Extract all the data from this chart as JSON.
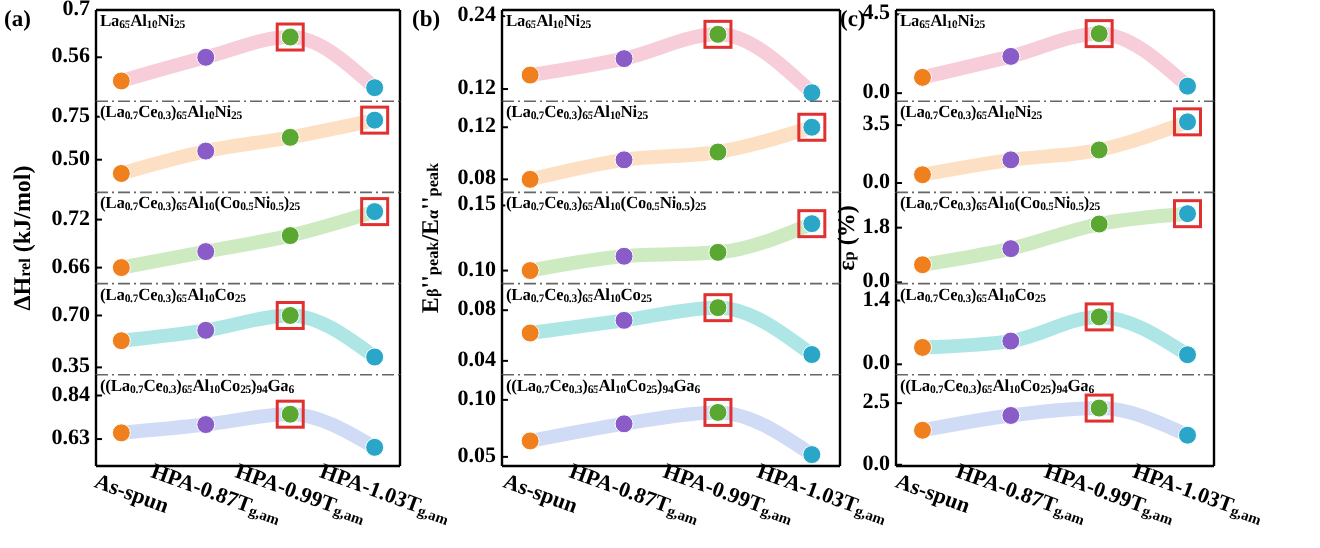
{
  "chart_data": [
    {
      "type": "line",
      "title": "(a)",
      "categories": [
        null,
        null,
        null,
        null
      ],
      "series": [
        {
          "color": "#f6cdd8",
          "values": [
            0.49,
            0.56,
            0.62,
            0.47
          ]
        }
      ],
      "colors": [
        "#f07f1e",
        "#8a5cc8",
        "#5aa832",
        "#2aa6c8"
      ],
      "marker": "circle",
      "ylim": [
        0.43,
        0.7
      ],
      "yticks": [
        0.56,
        0.7
      ],
      "annotations": [
        "La$_{65}$Al$_{10}$Ni$_{25}$"
      ]
    },
    {
      "type": "line",
      "title": "(b)",
      "categories": [
        null,
        null,
        null,
        null
      ],
      "series": [
        {
          "color": "#f6cdd8",
          "values": [
            0.143,
            0.17,
            0.21,
            0.114
          ]
        }
      ],
      "colors": [
        "#f07f1e",
        "#8a5cc8",
        "#5aa832",
        "#2aa6c8"
      ],
      "marker": "circle",
      "ylim": [
        0.1,
        0.25
      ],
      "yticks": [
        0.12,
        0.24
      ],
      "annotations": [
        "La$_{65}$Al$_{10}$Ni$_{25}$"
      ]
    },
    {
      "type": "line",
      "title": "(c)",
      "categories": [
        null,
        null,
        null,
        null
      ],
      "series": [
        {
          "color": "#f6cdd8",
          "values": [
            0.9,
            2.1,
            3.4,
            0.4
          ]
        }
      ],
      "colors": [
        "#f07f1e",
        "#8a5cc8",
        "#5aa832",
        "#2aa6c8"
      ],
      "marker": "circle",
      "ylim": [
        -0.46,
        4.75
      ],
      "yticks": [
        {
          "value": 0,
          "label": "0.0"
        },
        4.5
      ],
      "annotations": [
        "La$_{65}$Al$_{10}$Ni$_{25}$"
      ]
    },
    {
      "type": "line",
      "categories": [
        null,
        null,
        null,
        null
      ],
      "series": [
        {
          "color": "#fde0c4",
          "values": [
            0.42,
            0.55,
            0.63,
            0.73
          ]
        }
      ],
      "colors": [
        "#f07f1e",
        "#8a5cc8",
        "#5aa832",
        "#2aa6c8"
      ],
      "marker": "circle",
      "ylim": [
        0.31,
        0.84
      ],
      "yticks": [
        {
          "value": 0.5,
          "label": "0.50"
        },
        0.75
      ],
      "annotations": [
        "(La$_{0.7}$Ce$_{0.3}$)$_{65}$Al$_{10}$Ni$_{25}$"
      ]
    },
    {
      "type": "line",
      "categories": [
        null,
        null,
        null,
        null
      ],
      "series": [
        {
          "color": "#fde0c4",
          "values": [
            0.08,
            0.095,
            0.101,
            0.12
          ]
        }
      ],
      "colors": [
        "#f07f1e",
        "#8a5cc8",
        "#5aa832",
        "#2aa6c8"
      ],
      "marker": "circle",
      "ylim": [
        0.07,
        0.14
      ],
      "yticks": [
        0.08,
        0.12
      ],
      "annotations": [
        "(La$_{0.7}$Ce$_{0.3}$)$_{65}$Al$_{10}$Ni$_{25}$"
      ]
    },
    {
      "type": "line",
      "categories": [
        null,
        null,
        null,
        null
      ],
      "series": [
        {
          "color": "#fde0c4",
          "values": [
            0.5,
            1.4,
            2.0,
            3.7
          ]
        }
      ],
      "colors": [
        "#f07f1e",
        "#8a5cc8",
        "#5aa832",
        "#2aa6c8"
      ],
      "marker": "circle",
      "ylim": [
        -0.57,
        4.95
      ],
      "yticks": [
        {
          "value": 0,
          "label": "0.0"
        },
        3.5
      ],
      "annotations": [
        "(La$_{0.7}$Ce$_{0.3}$)$_{65}$Al$_{10}$Ni$_{25}$"
      ]
    },
    {
      "type": "line",
      "ylabel": "ΔH$_{rel}$ (kJ/mol)",
      "categories": [
        null,
        null,
        null,
        null
      ],
      "series": [
        {
          "color": "#cdeac0",
          "values": [
            0.66,
            0.68,
            0.7,
            0.73
          ]
        }
      ],
      "colors": [
        "#f07f1e",
        "#8a5cc8",
        "#5aa832",
        "#2aa6c8"
      ],
      "marker": "circle",
      "ylim": [
        0.64,
        0.754
      ],
      "yticks": [
        0.66,
        0.72
      ],
      "annotations": [
        "(La$_{0.7}$Ce$_{0.3}$)$_{65}$Al$_{10}$(Co$_{0.5}$Ni$_{0.5}$)$_{25}$"
      ]
    },
    {
      "type": "line",
      "ylabel": "E$_{β}$''$_{peak}$/E$_{α}$''$_{peak}$",
      "categories": [
        null,
        null,
        null,
        null
      ],
      "series": [
        {
          "color": "#cdeac0",
          "values": [
            0.1,
            0.111,
            0.114,
            0.136
          ]
        }
      ],
      "colors": [
        "#f07f1e",
        "#8a5cc8",
        "#5aa832",
        "#2aa6c8"
      ],
      "marker": "circle",
      "ylim": [
        0.09,
        0.16
      ],
      "yticks": [
        {
          "value": 0.1,
          "label": "0.10"
        },
        0.15
      ],
      "annotations": [
        "(La$_{0.7}$Ce$_{0.3}$)$_{65}$Al$_{10}$(Co$_{0.5}$Ni$_{0.5}$)$_{25}$"
      ]
    },
    {
      "type": "line",
      "ylabel": "ε$_{p}$ (%)",
      "categories": [
        null,
        null,
        null,
        null
      ],
      "series": [
        {
          "color": "#cdeac0",
          "values": [
            0.58,
            1.11,
            1.92,
            2.26
          ]
        }
      ],
      "colors": [
        "#f07f1e",
        "#8a5cc8",
        "#5aa832",
        "#2aa6c8"
      ],
      "marker": "circle",
      "ylim": [
        -0.04,
        2.96
      ],
      "yticks": [
        {
          "value": 0,
          "label": "0.0"
        },
        1.8
      ],
      "annotations": [
        "(La$_{0.7}$Ce$_{0.3}$)$_{65}$Al$_{10}$(Co$_{0.5}$Ni$_{0.5}$)$_{25}$"
      ]
    },
    {
      "type": "line",
      "categories": [
        null,
        null,
        null,
        null
      ],
      "series": [
        {
          "color": "#aee6e6",
          "values": [
            0.53,
            0.6,
            0.7,
            0.42
          ]
        }
      ],
      "colors": [
        "#f07f1e",
        "#8a5cc8",
        "#5aa832",
        "#2aa6c8"
      ],
      "marker": "circle",
      "ylim": [
        0.3,
        0.915
      ],
      "yticks": [
        0.35,
        {
          "value": 0.7,
          "label": "0.70"
        }
      ],
      "annotations": [
        "(La$_{0.7}$Ce$_{0.3}$)$_{65}$Al$_{10}$Co$_{25}$"
      ]
    },
    {
      "type": "line",
      "categories": [
        null,
        null,
        null,
        null
      ],
      "series": [
        {
          "color": "#aee6e6",
          "values": [
            0.062,
            0.072,
            0.082,
            0.045
          ]
        }
      ],
      "colors": [
        "#f07f1e",
        "#8a5cc8",
        "#5aa832",
        "#2aa6c8"
      ],
      "marker": "circle",
      "ylim": [
        0.029,
        0.101
      ],
      "yticks": [
        0.04,
        0.08
      ],
      "annotations": [
        "(La$_{0.7}$Ce$_{0.3}$)$_{65}$Al$_{10}$Co$_{25}$"
      ]
    },
    {
      "type": "line",
      "categories": [
        null,
        null,
        null,
        null
      ],
      "series": [
        {
          "color": "#aee6e6",
          "values": [
            0.37,
            0.51,
            1.04,
            0.21
          ]
        }
      ],
      "colors": [
        "#f07f1e",
        "#8a5cc8",
        "#5aa832",
        "#2aa6c8"
      ],
      "marker": "circle",
      "ylim": [
        -0.23,
        1.77
      ],
      "yticks": [
        {
          "value": 0,
          "label": "0.0"
        },
        1.4
      ],
      "annotations": [
        "(La$_{0.7}$Ce$_{0.3}$)$_{65}$Al$_{10}$Co$_{25}$"
      ]
    },
    {
      "type": "line",
      "categories": [
        "As-spun",
        "HPA-0.87T$_{g,am}$",
        "HPA-0.99T$_{g,am}$",
        "HPA-1.03T$_{g,am}$"
      ],
      "series": [
        {
          "color": "#d0dcf6",
          "values": [
            0.66,
            0.7,
            0.75,
            0.59
          ]
        }
      ],
      "colors": [
        "#f07f1e",
        "#8a5cc8",
        "#5aa832",
        "#2aa6c8"
      ],
      "marker": "circle",
      "ylim": [
        0.5,
        0.94
      ],
      "yticks": [
        0.63,
        0.84
      ],
      "annotations": [
        "((La$_{0.7}$Ce$_{0.3}$)$_{65}$Al$_{10}$Co$_{25}$)$_{94}$Ga$_{6}$"
      ]
    },
    {
      "type": "line",
      "categories": [
        "As-spun",
        "HPA-0.87T$_{g,am}$",
        "HPA-0.99T$_{g,am}$",
        "HPA-1.03T$_{g,am}$"
      ],
      "series": [
        {
          "color": "#d0dcf6",
          "values": [
            0.064,
            0.079,
            0.089,
            0.052
          ]
        }
      ],
      "colors": [
        "#f07f1e",
        "#8a5cc8",
        "#5aa832",
        "#2aa6c8"
      ],
      "marker": "circle",
      "ylim": [
        0.042,
        0.122
      ],
      "yticks": [
        0.05,
        {
          "value": 0.1,
          "label": "0.10"
        }
      ],
      "annotations": [
        "((La$_{0.7}$Ce$_{0.3}$)$_{65}$Al$_{10}$Co$_{25}$)$_{94}$Ga$_{6}$"
      ]
    },
    {
      "type": "line",
      "categories": [
        "As-spun",
        "HPA-0.87T$_{g,am}$",
        "HPA-0.99T$_{g,am}$",
        "HPA-1.03T$_{g,am}$"
      ],
      "series": [
        {
          "color": "#d0dcf6",
          "values": [
            1.4,
            2.0,
            2.3,
            1.2
          ]
        }
      ],
      "colors": [
        "#f07f1e",
        "#8a5cc8",
        "#5aa832",
        "#2aa6c8"
      ],
      "marker": "circle",
      "ylim": [
        -0.05,
        3.65
      ],
      "yticks": [
        {
          "value": 0,
          "label": "0.0"
        },
        2.5
      ],
      "annotations": [
        "((La$_{0.7}$Ce$_{0.3}$)$_{65}$Al$_{10}$Co$_{25}$)$_{94}$Ga$_{6}$"
      ]
    }
  ]
}
